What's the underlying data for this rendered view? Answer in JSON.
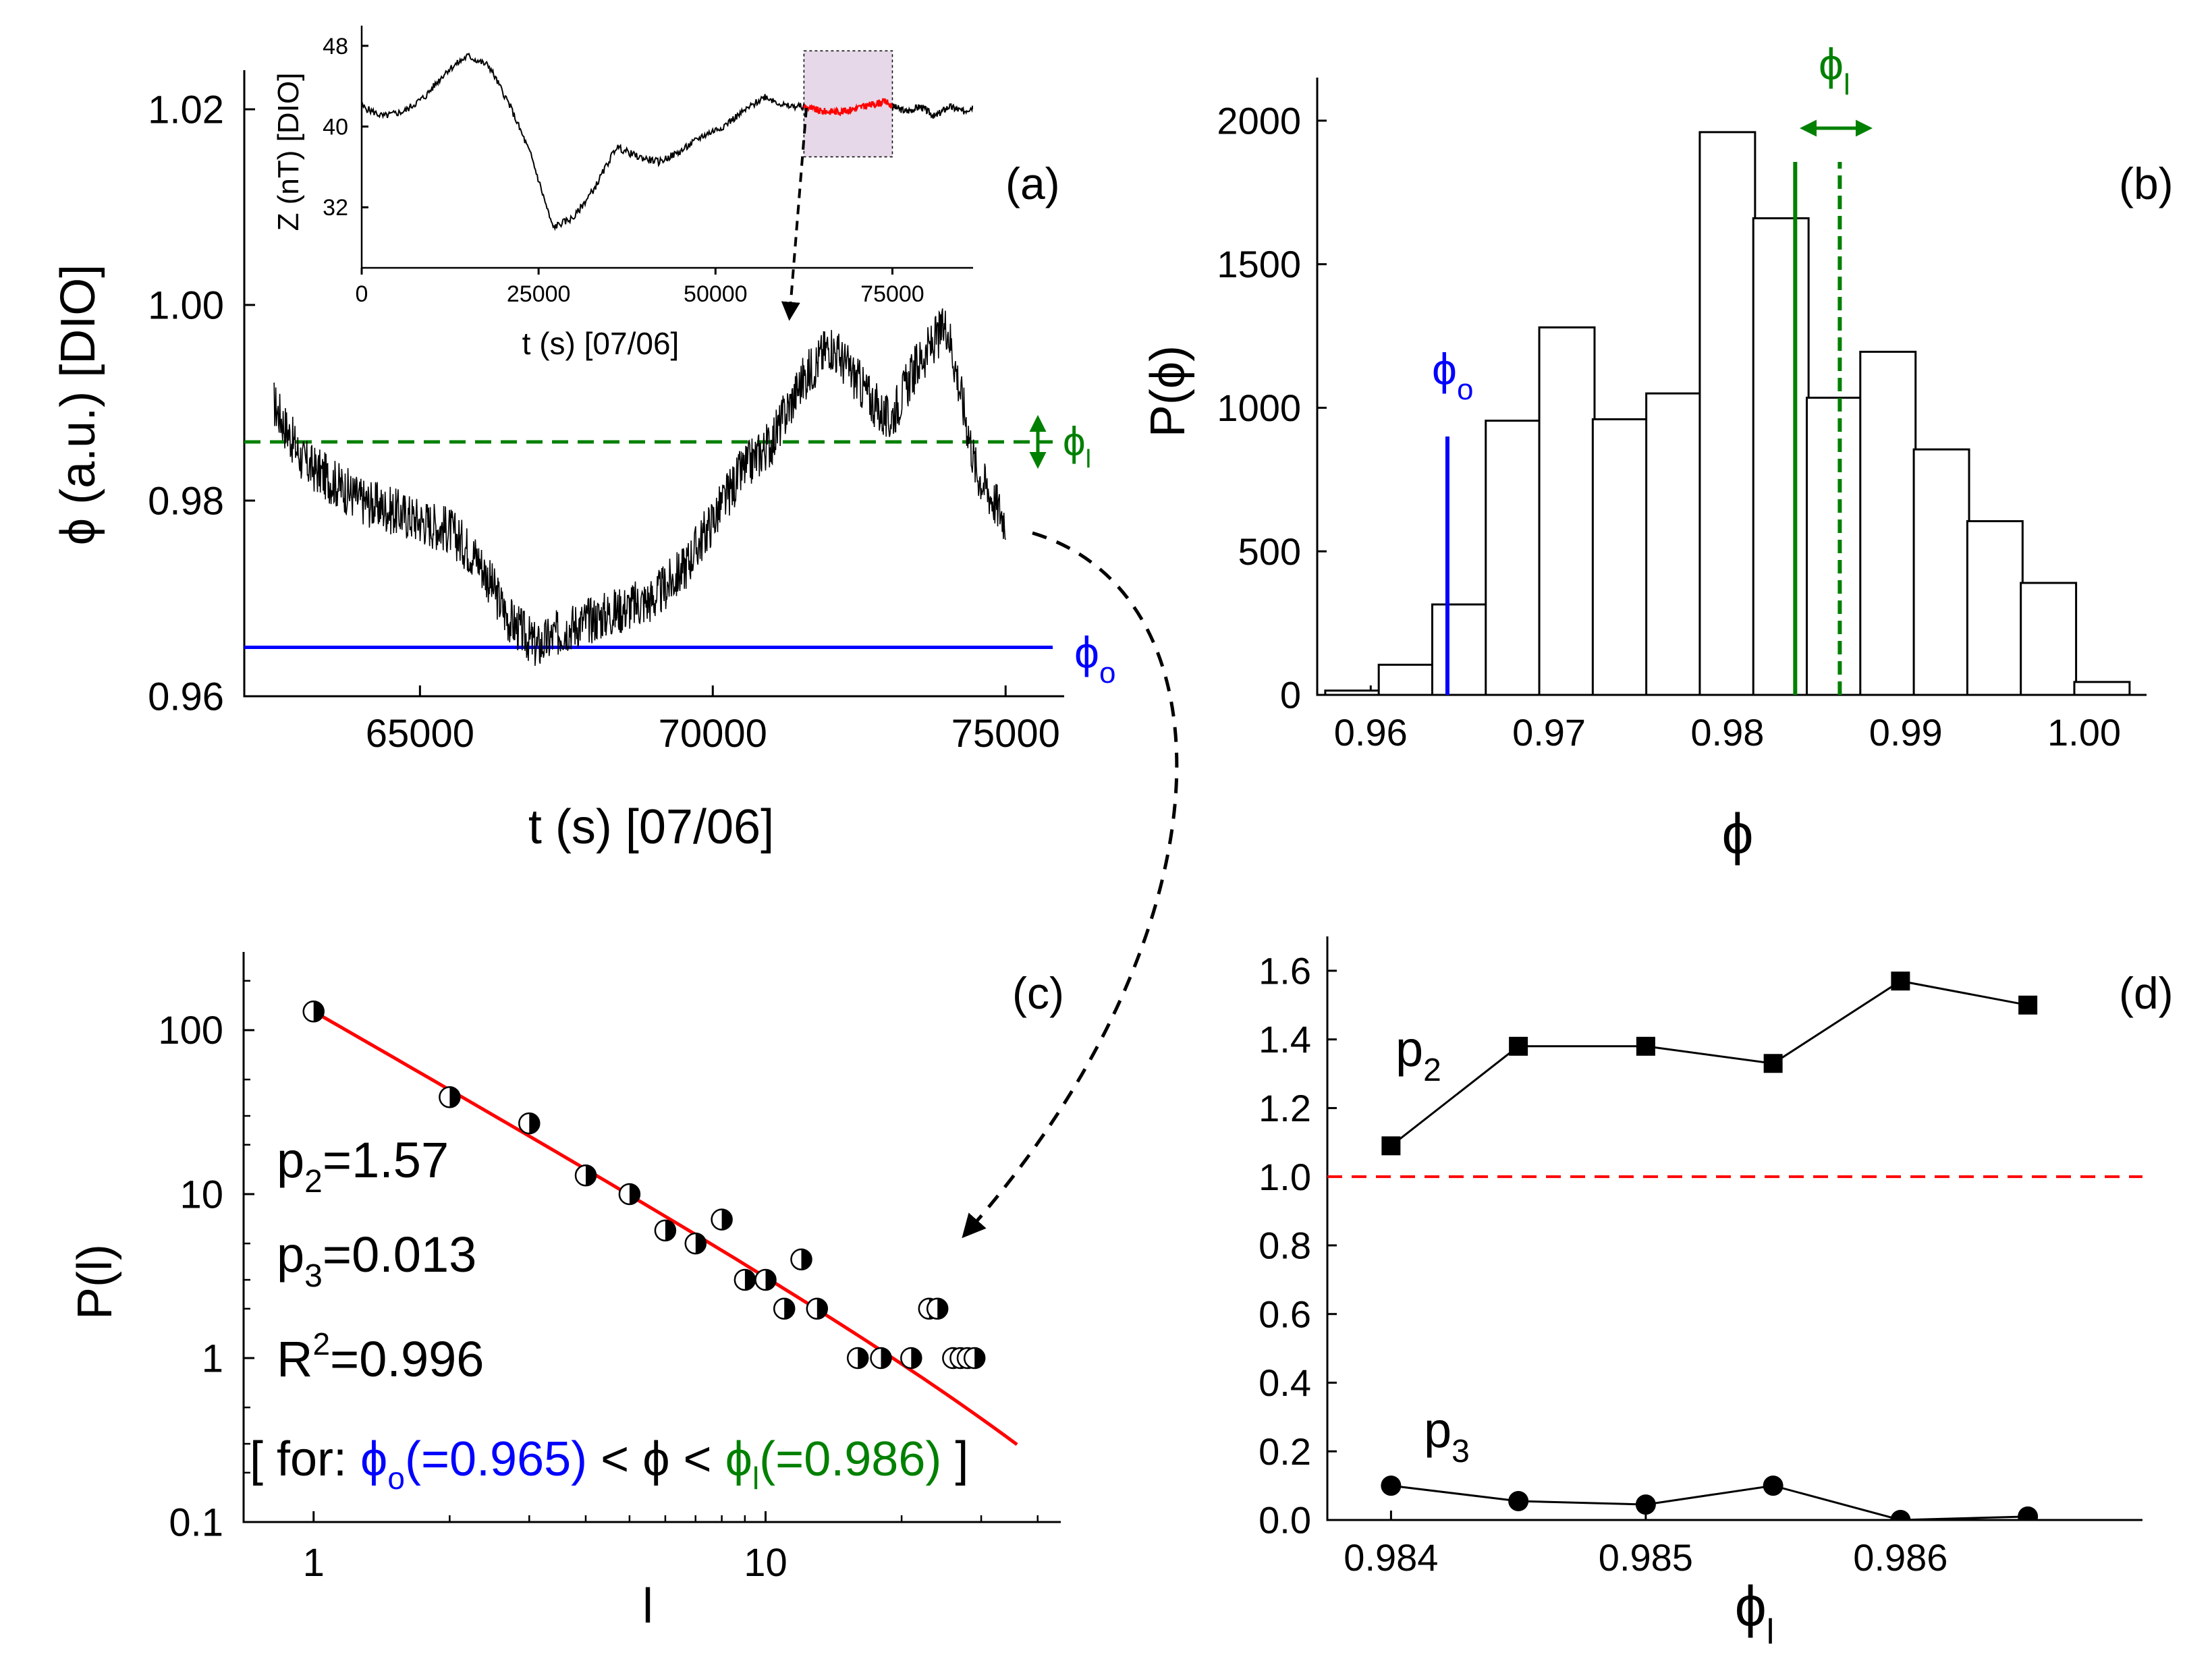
{
  "colors": {
    "black": "#000000",
    "blue": "#0000ff",
    "green": "#008000",
    "red": "#ff0000",
    "highlight": "#e6d8e8"
  },
  "chart_data": [
    {
      "id": "a",
      "type": "line",
      "panel_label": "(a)",
      "xlabel": "t (s) [07/06]",
      "ylabel": "ϕ (a.u.) [DIO]",
      "xlim": [
        62000,
        76000
      ],
      "ylim": [
        0.96,
        1.024
      ],
      "x_ticks": [
        65000,
        70000,
        75000
      ],
      "x_tick_labels": [
        "65000",
        "70000",
        "75000"
      ],
      "y_ticks": [
        0.96,
        0.98,
        1.0,
        1.02
      ],
      "y_tick_labels": [
        "0.96",
        "0.98",
        "1.00",
        "1.02"
      ],
      "series": [
        {
          "name": "ϕ(t)",
          "color": "#000000",
          "x": [
            62500,
            63000,
            63500,
            64000,
            64500,
            65000,
            65500,
            66000,
            66500,
            67000,
            67500,
            68000,
            68500,
            69000,
            69500,
            70000,
            70500,
            71000,
            71500,
            72000,
            72500,
            73000,
            73500,
            74000,
            74500,
            75000
          ],
          "y": [
            0.99,
            0.984,
            0.982,
            0.98,
            0.979,
            0.978,
            0.977,
            0.974,
            0.968,
            0.965,
            0.967,
            0.968,
            0.969,
            0.97,
            0.973,
            0.978,
            0.983,
            0.986,
            0.992,
            0.996,
            0.992,
            0.988,
            0.994,
            0.998,
            0.983,
            0.978
          ],
          "noise_amplitude": 0.0025
        }
      ],
      "hlines": [
        {
          "name": "phi_l",
          "y": 0.986,
          "color": "#008000",
          "style": "dashed",
          "label_main": "ϕ",
          "label_sub": "l"
        },
        {
          "name": "phi_o",
          "y": 0.965,
          "color": "#0000ff",
          "style": "solid",
          "label_main": "ϕ",
          "label_sub": "o"
        }
      ]
    },
    {
      "id": "a_inset",
      "type": "line",
      "xlabel": "t (s) [07/06]",
      "ylabel": "Z (nT) [DIO]",
      "xlim": [
        0,
        86400
      ],
      "ylim": [
        26,
        50
      ],
      "x_ticks": [
        0,
        25000,
        50000,
        75000
      ],
      "x_tick_labels": [
        "0",
        "25000",
        "50000",
        "75000"
      ],
      "y_ticks": [
        32,
        40,
        48
      ],
      "y_tick_labels": [
        "32",
        "40",
        "48"
      ],
      "highlight_range": [
        62500,
        75000
      ],
      "series": [
        {
          "name": "Z(t)",
          "color": "#000000",
          "x": [
            0,
            3000,
            6000,
            9000,
            12000,
            15000,
            18000,
            21000,
            24000,
            27000,
            30000,
            33000,
            36000,
            39000,
            42000,
            45000,
            48000,
            51000,
            54000,
            57000,
            60000,
            62500,
            65000,
            68000,
            71000,
            74000,
            75000,
            77000,
            79000,
            81000,
            83000,
            85000,
            86400
          ],
          "y": [
            42,
            41,
            41.5,
            43,
            45.5,
            47,
            46,
            42,
            37,
            30,
            31,
            34,
            38,
            37,
            36.5,
            37.5,
            39,
            40,
            41.5,
            43,
            42,
            42,
            41.5,
            41.5,
            42,
            42.5,
            42,
            41.5,
            42,
            41,
            42,
            41.5,
            42
          ],
          "noise_amplitude": 0.35
        }
      ]
    },
    {
      "id": "b",
      "type": "bar",
      "panel_label": "(b)",
      "xlabel": "ϕ",
      "ylabel": "P(ϕ)",
      "xlim": [
        0.957,
        1.0035
      ],
      "ylim": [
        0,
        2150
      ],
      "x_ticks": [
        0.96,
        0.97,
        0.98,
        0.99,
        1.0
      ],
      "x_tick_labels": [
        "0.96",
        "0.97",
        "0.98",
        "0.99",
        "1.00"
      ],
      "y_ticks": [
        0,
        500,
        1000,
        1500,
        2000
      ],
      "y_tick_labels": [
        "0",
        "500",
        "1000",
        "1500",
        "2000"
      ],
      "bin_width": 0.002,
      "bin_centers": [
        0.959,
        0.962,
        0.965,
        0.968,
        0.971,
        0.974,
        0.977,
        0.98,
        0.983,
        0.986,
        0.989,
        0.992,
        0.995,
        0.998,
        1.001
      ],
      "values": [
        15,
        105,
        315,
        955,
        1280,
        960,
        1050,
        1960,
        1660,
        1035,
        1195,
        855,
        605,
        390,
        45
      ],
      "vlines": [
        {
          "name": "phi_o",
          "x": 0.9643,
          "ymax": 900,
          "color": "#0000ff",
          "style": "solid"
        },
        {
          "name": "phi_l_min",
          "x": 0.9838,
          "color": "#008000",
          "style": "solid"
        },
        {
          "name": "phi_l_max",
          "x": 0.9863,
          "color": "#008000",
          "style": "dashed"
        }
      ],
      "annotations": [
        {
          "name": "phi_o",
          "label_main": "ϕ",
          "label_sub": "o",
          "color": "#0000ff"
        },
        {
          "name": "phi_l",
          "label_main": "ϕ",
          "label_sub": "l",
          "color": "#008000"
        }
      ]
    },
    {
      "id": "c",
      "type": "scatter",
      "panel_label": "(c)",
      "xlabel": "l",
      "ylabel": "P(l)",
      "x_scale": "log",
      "y_scale": "log",
      "xlim": [
        0.7,
        45
      ],
      "ylim": [
        0.1,
        300
      ],
      "x_ticks": [
        1,
        10
      ],
      "x_tick_labels": [
        "1",
        "10"
      ],
      "y_ticks": [
        0.1,
        1,
        10,
        100
      ],
      "y_tick_labels": [
        "0.1",
        "1",
        "10",
        "100"
      ],
      "points": [
        {
          "l": 1,
          "p": 130
        },
        {
          "l": 2,
          "p": 39
        },
        {
          "l": 3,
          "p": 27
        },
        {
          "l": 4,
          "p": 13
        },
        {
          "l": 5,
          "p": 10
        },
        {
          "l": 6,
          "p": 6
        },
        {
          "l": 7,
          "p": 5
        },
        {
          "l": 8,
          "p": 7
        },
        {
          "l": 9,
          "p": 3
        },
        {
          "l": 10,
          "p": 3
        },
        {
          "l": 11,
          "p": 2
        },
        {
          "l": 12,
          "p": 4
        },
        {
          "l": 13,
          "p": 2
        },
        {
          "l": 16,
          "p": 1
        },
        {
          "l": 18,
          "p": 1
        },
        {
          "l": 21,
          "p": 1
        },
        {
          "l": 23,
          "p": 2
        },
        {
          "l": 24,
          "p": 2
        },
        {
          "l": 26,
          "p": 1
        },
        {
          "l": 27,
          "p": 1
        },
        {
          "l": 28,
          "p": 1
        },
        {
          "l": 29,
          "p": 1
        }
      ],
      "fit": {
        "p2": 1.57,
        "p3": 0.013,
        "x_range": [
          1,
          36
        ],
        "color": "#ff0000"
      },
      "fit_text": {
        "p2_main": "p",
        "p2_sub": "2",
        "p2_val": "=1.57",
        "p3_main": "p",
        "p3_sub": "3",
        "p3_val": "=0.013",
        "r2_main": "R",
        "r2_sup": "2",
        "r2_val": "=0.996"
      },
      "condition_text": {
        "open": "[ for: ",
        "phi_o_main": "ϕ",
        "phi_o_sub": "o",
        "phi_o_val": "(=0.965)",
        "lt1": " < ",
        "phi": "ϕ",
        "lt2": " < ",
        "phi_l_main": "ϕ",
        "phi_l_sub": "l",
        "phi_l_val": "(=0.986)",
        "close": " ]"
      }
    },
    {
      "id": "d",
      "type": "line",
      "panel_label": "(d)",
      "xlabel": "ϕ",
      "xlabel_sub": "l",
      "xlim": [
        0.98375,
        0.98695
      ],
      "ylim": [
        0,
        1.7
      ],
      "x_ticks": [
        0.984,
        0.985,
        0.986
      ],
      "x_tick_labels": [
        "0.984",
        "0.985",
        "0.986"
      ],
      "y_ticks": [
        0.0,
        0.2,
        0.4,
        0.6,
        0.8,
        1.0,
        1.2,
        1.4,
        1.6
      ],
      "y_tick_labels": [
        "0.0",
        "0.2",
        "0.4",
        "0.6",
        "0.8",
        "1.0",
        "1.2",
        "1.4",
        "1.6"
      ],
      "reference_line": {
        "y": 1.0,
        "color": "#ff0000",
        "style": "dashed"
      },
      "series": [
        {
          "name": "p2",
          "label_main": "p",
          "label_sub": "2",
          "marker": "square",
          "x": [
            0.984,
            0.9845,
            0.985,
            0.9855,
            0.986,
            0.9865
          ],
          "y": [
            1.09,
            1.38,
            1.38,
            1.33,
            1.57,
            1.5
          ]
        },
        {
          "name": "p3",
          "label_main": "p",
          "label_sub": "3",
          "marker": "circle",
          "x": [
            0.984,
            0.9845,
            0.985,
            0.9855,
            0.986,
            0.9865
          ],
          "y": [
            0.1,
            0.055,
            0.045,
            0.1,
            0.0,
            0.01
          ]
        }
      ]
    }
  ]
}
